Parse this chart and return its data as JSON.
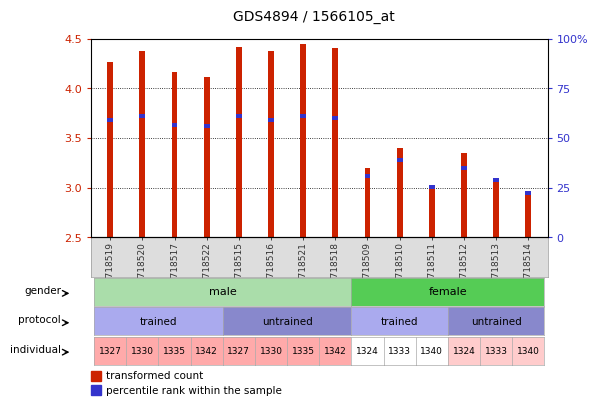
{
  "title": "GDS4894 / 1566105_at",
  "samples": [
    "GSM718519",
    "GSM718520",
    "GSM718517",
    "GSM718522",
    "GSM718515",
    "GSM718516",
    "GSM718521",
    "GSM718518",
    "GSM718509",
    "GSM718510",
    "GSM718511",
    "GSM718512",
    "GSM718513",
    "GSM718514"
  ],
  "bar_values": [
    4.26,
    4.38,
    4.16,
    4.11,
    4.42,
    4.38,
    4.45,
    4.41,
    3.2,
    3.4,
    3.01,
    3.35,
    3.1,
    2.95
  ],
  "blue_values": [
    3.68,
    3.72,
    3.63,
    3.62,
    3.72,
    3.68,
    3.72,
    3.7,
    3.12,
    3.28,
    3.01,
    3.2,
    3.08,
    2.95
  ],
  "ymin": 2.5,
  "ymax": 4.5,
  "yticks": [
    2.5,
    3.0,
    3.5,
    4.0,
    4.5
  ],
  "y2ticks": [
    0,
    25,
    50,
    75,
    100
  ],
  "bar_color": "#cc2200",
  "blue_color": "#3333cc",
  "gender_male_color": "#aaddaa",
  "gender_female_color": "#55cc55",
  "protocol_trained_color": "#aaaaee",
  "protocol_untrained_color": "#8888cc",
  "individual_male_trained_color": "#ffaaaa",
  "individual_male_untrained_color": "#ffaaaa",
  "individual_female_trained_color": "#ffffff",
  "individual_female_untrained_color": "#ffcccc",
  "gender_labels": [
    {
      "label": "male",
      "start": 0,
      "end": 8
    },
    {
      "label": "female",
      "start": 8,
      "end": 14
    }
  ],
  "protocol_labels": [
    {
      "label": "trained",
      "start": 0,
      "end": 4
    },
    {
      "label": "untrained",
      "start": 4,
      "end": 8
    },
    {
      "label": "trained",
      "start": 8,
      "end": 11
    },
    {
      "label": "untrained",
      "start": 11,
      "end": 14
    }
  ],
  "individuals": [
    "1327",
    "1330",
    "1335",
    "1342",
    "1327",
    "1330",
    "1335",
    "1342",
    "1324",
    "1333",
    "1340",
    "1324",
    "1333",
    "1340"
  ],
  "legend_labels": [
    "transformed count",
    "percentile rank within the sample"
  ],
  "axis_label_color_red": "#cc2200",
  "axis_label_color_blue": "#3333cc",
  "bg_color": "#ffffff",
  "bar_width": 0.18,
  "tick_label_bg": "#dddddd"
}
